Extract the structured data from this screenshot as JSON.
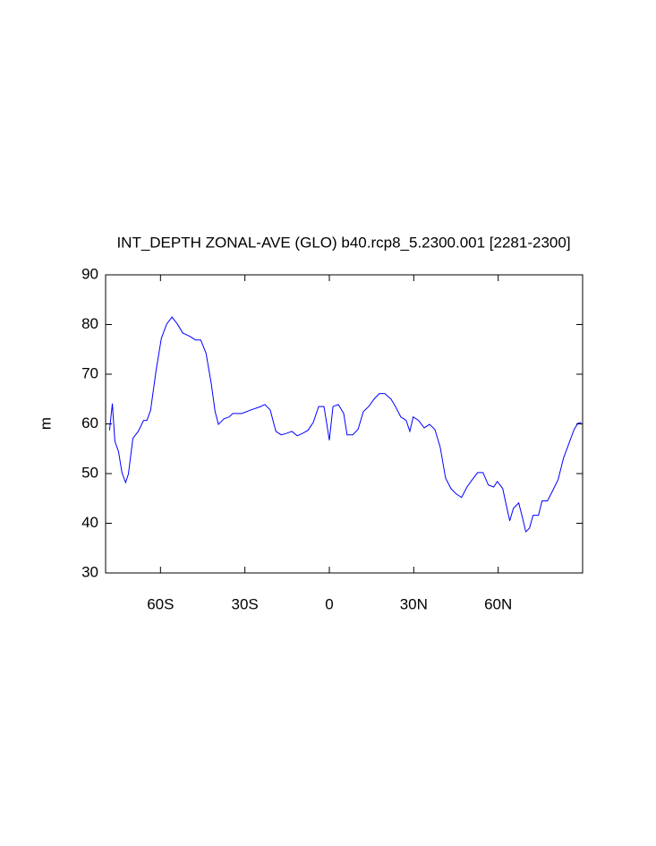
{
  "chart_data": {
    "type": "line",
    "title": "INT_DEPTH ZONAL-AVE (GLO) b40.rcp8_5.2300.001 [2281-2300]",
    "y_label": "m",
    "x": [
      -78.1,
      -77.1,
      -76.2,
      -74.9,
      -73.7,
      -72.4,
      -71.4,
      -69.8,
      -67.9,
      -66.0,
      -64.8,
      -63.5,
      -61.6,
      -59.7,
      -57.8,
      -55.9,
      -54.0,
      -52.1,
      -49.5,
      -47.6,
      -45.7,
      -43.8,
      -41.9,
      -40.6,
      -39.4,
      -37.5,
      -35.6,
      -34.3,
      -31.1,
      -27.9,
      -24.8,
      -22.9,
      -21.0,
      -19.0,
      -17.1,
      -15.2,
      -13.3,
      -11.4,
      -9.5,
      -7.6,
      -5.7,
      -3.8,
      -1.9,
      -0.6,
      0,
      1.3,
      3.2,
      5.1,
      6.3,
      8.3,
      10.2,
      12.1,
      14.0,
      15.9,
      17.8,
      19.7,
      21.9,
      23.5,
      25.4,
      27.3,
      28.6,
      29.8,
      31.7,
      33.7,
      35.6,
      37.5,
      39.4,
      41.3,
      43.2,
      45.1,
      47.0,
      48.9,
      50.8,
      52.7,
      54.6,
      56.5,
      58.4,
      59.7,
      61.6,
      62.9,
      64.1,
      65.4,
      67.3,
      68.6,
      69.8,
      71.1,
      72.4,
      74.3,
      75.6,
      77.5,
      79.4,
      81.3,
      83.2,
      85.1,
      87.0,
      88.3,
      89.5
    ],
    "series": [
      {
        "color": "#0000ff",
        "values": [
          58.7,
          64.1,
          56.5,
          54.4,
          50.2,
          48.2,
          49.9,
          57.1,
          58.5,
          60.7,
          60.7,
          62.8,
          70.6,
          77.2,
          80.1,
          81.5,
          80.1,
          78.3,
          77.6,
          76.9,
          76.9,
          74.2,
          67.9,
          62.5,
          59.9,
          61.0,
          61.4,
          62.1,
          62.1,
          62.8,
          63.4,
          63.9,
          62.8,
          58.5,
          57.8,
          58.1,
          58.5,
          57.6,
          58.1,
          58.7,
          60.3,
          63.5,
          63.5,
          58.9,
          56.7,
          63.5,
          63.9,
          62.1,
          57.8,
          57.8,
          58.9,
          62.5,
          63.5,
          65.0,
          66.1,
          66.1,
          65.0,
          63.5,
          61.4,
          60.7,
          58.5,
          61.4,
          60.7,
          59.2,
          59.9,
          58.9,
          55.3,
          49.1,
          47.0,
          45.9,
          45.2,
          47.3,
          48.8,
          50.2,
          50.2,
          47.7,
          47.3,
          48.4,
          47.0,
          43.6,
          40.5,
          43.0,
          44.1,
          41.2,
          38.3,
          39.0,
          41.6,
          41.6,
          44.5,
          44.5,
          46.6,
          48.8,
          53.1,
          56.0,
          58.9,
          60.1,
          60.3
        ]
      }
    ],
    "xlim": [
      -79.5,
      90
    ],
    "xticks": [
      {
        "value": -60,
        "label": "60S"
      },
      {
        "value": -30,
        "label": "30S"
      },
      0,
      {
        "value": 30,
        "label": "30N"
      },
      {
        "value": 60,
        "label": "60N"
      }
    ],
    "ylim": [
      30,
      90
    ],
    "yticks": [
      30,
      40,
      50,
      60,
      70,
      80,
      90
    ]
  }
}
